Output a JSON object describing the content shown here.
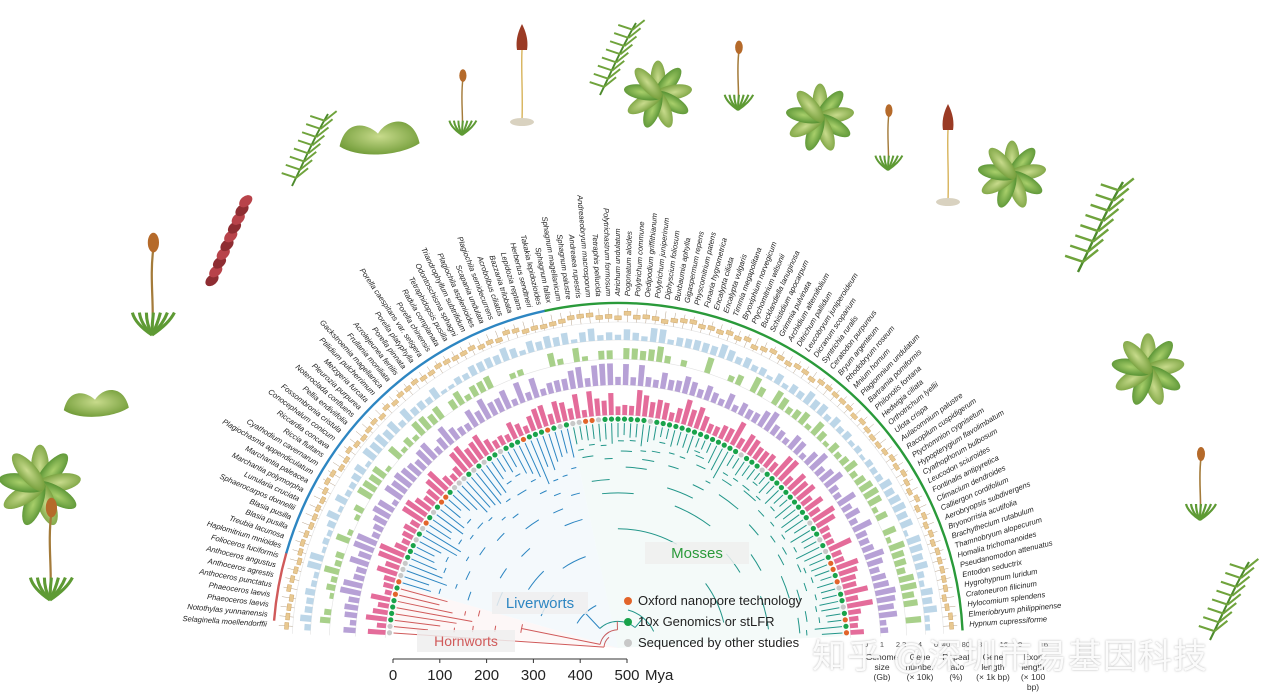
{
  "chart_data": {
    "type": "circular-phylogeny",
    "title": "",
    "xlabel": "Mya",
    "x_ticks": [
      0,
      100,
      200,
      300,
      400,
      500
    ],
    "x_range": [
      0,
      500
    ],
    "groups": [
      {
        "name": "Mosses",
        "color": "#2a9a3a"
      },
      {
        "name": "Liverworts",
        "color": "#2d86c2"
      },
      {
        "name": "Hornworts",
        "color": "#d05a5a"
      }
    ],
    "legend": [
      {
        "label": "Oxford nanopore technology",
        "color": "#e2642a"
      },
      {
        "label": "10x Genomics or stLFR",
        "color": "#19a34a"
      },
      {
        "label": "Sequenced by other studies",
        "color": "#c8c8c8"
      }
    ],
    "tracks": [
      {
        "name": "Genome size",
        "unit": "(Gb)",
        "ticks": [
          "0",
          "1",
          "2"
        ],
        "color": "#e8c890"
      },
      {
        "name": "Gene number",
        "unit": "(× 10k)",
        "ticks": [
          "2",
          "4",
          "6"
        ],
        "color": "#bcd6e8"
      },
      {
        "name": "Repeat ratio",
        "unit": "(%)",
        "ticks": [
          "40",
          "80"
        ],
        "color": "#a8d08a"
      },
      {
        "name": "Gene length",
        "unit": "(× 1k bp)",
        "ticks": [
          "8",
          "16"
        ],
        "color": "#b7a1d6"
      },
      {
        "name": "Exon length",
        "unit": "(× 100 bp)",
        "ticks": [
          "8",
          "16"
        ],
        "color": "#e46c9a"
      }
    ]
  },
  "species_left": [
    "Selaginella moellendorffii",
    "Notothylas yunnanensis",
    "Phaeoceros laevis",
    "Phaeoceros laevis",
    "Anthoceros punctatus",
    "Anthoceros agrestis",
    "Anthoceros angustus",
    "Folioceros fuciformis",
    "Haplomitrium mnioides",
    "Treubia lacunosa",
    "Blasia pusilla",
    "Blasia pusilla",
    "Sphaerocarpos donnellii",
    "Lunularia cruciata",
    "Marchantia polymorpha",
    "Marchantia paleacea",
    "Plagiochasma appendiculatum",
    "Cyathodium cavernarum",
    "Riccia fluitans",
    "Riccardia concava",
    "Conocephalum conicum",
    "Fossombronia cristula",
    "Pellia endiviifolia",
    "Noteroclada confluens",
    "Pleurozia purpurea",
    "Metzgeria furcata",
    "Ptilidium pulcherrimum",
    "Gackstroemia magellanica",
    "Frullania moniliata",
    "Acrolejeunea fertilis",
    "Porella pinnata",
    "Porella platyphylla",
    "Porella caespitans var. setigera",
    "Porella chinensis",
    "Radula complanata",
    "Tetraphidopsis pusilla",
    "Odontoschisma sphagni",
    "Triandrophyllum subtrifidum",
    "Plagiochila asplenioides",
    "Scapania undulata",
    "Plagiochila semidecurrens",
    "Acrobolbus ciliatus",
    "Bazzania trilobata",
    "Lepidozia reptans",
    "Herbertus sendtneri",
    "Takakia lepidozioides",
    "Sphagnum fallax",
    "Sphagnum magellanicum",
    "Sphagnum palustre",
    "Andreaea rupestris",
    "Andreaeobryum macrosporum",
    "Tetraphis pellucida"
  ],
  "species_right": [
    "Polytrichastrum formosum",
    "Atrichum undulatum",
    "Pogonatum aloides",
    "Polytrichum commune",
    "Oedipodium griffithianum",
    "Polytrichum juniperinum",
    "Diphyscium foliosum",
    "Buxbaumia aphylla",
    "Gigaspermum repens",
    "Physcomitrium patens",
    "Funaria hygrometrica",
    "Encalypta ciliata",
    "Encalypta vulgaris",
    "Timmia megapolitana",
    "Bryoxiphium norvegicum",
    "Ptychomitrium wilsonii",
    "Bucklandiella lanuginosa",
    "Schistidium apocarpum",
    "Grimmia pulvinata",
    "Archidium alternifolium",
    "Ditrichum pallidum",
    "Leucobryum juniperoideum",
    "Dicranum scoparium",
    "Syntrichia ruralis",
    "Ceratodon purpureus",
    "Bryum argenteum",
    "Rhodobryum roseum",
    "Mnium hornum",
    "Plagiomnium undulatum",
    "Bartramia pomiformis",
    "Philonotis fontana",
    "Hedwigia ciliata",
    "Orthotrichum lyellii",
    "Ulota crispa",
    "Aulacomnium palustre",
    "Racopilum cuspidigerum",
    "Ptychomnion cygnisetum",
    "Hypopterygium flavolimbatum",
    "Cyathophorum bulbosum",
    "Leucodon sciuroides",
    "Fontinalis antipyretica",
    "Climacium dendroides",
    "Calliergon cordifolium",
    "Aerobryopsis subdivergens",
    "Bryonorrisia acutifolia",
    "Brachythecium rutabulum",
    "Thamnobryum alopecurum",
    "Homalia trichomanoides",
    "Pseudanomodon attenuatus",
    "Entodon seductrix",
    "Hygrohypnum luridum",
    "Cratoneuron filicinum",
    "Hylocomium splendens",
    "Elmeriobryum philippinense",
    "Hypnum cupressiforme"
  ],
  "watermark": "知乎 @深圳市易基因科技"
}
